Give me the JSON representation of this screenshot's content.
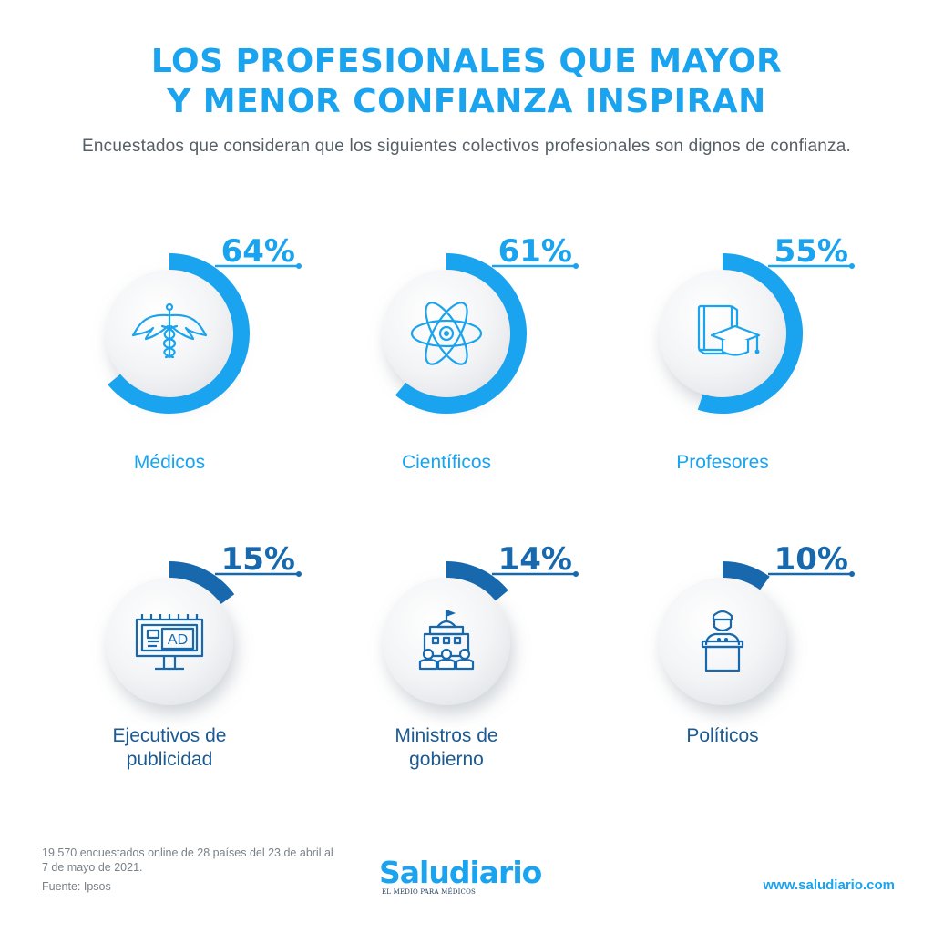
{
  "title": {
    "line1": "LOS PROFESIONALES QUE MAYOR",
    "line2": "Y MENOR CONFIANZA INSPIRAN"
  },
  "subtitle": "Encuestados que consideran que los siguientes colectivos profesionales son dignos de confianza.",
  "chart_data": {
    "type": "radial-progress",
    "unit": "%",
    "items": [
      {
        "category": "Médicos",
        "label_lines": [
          "Médicos"
        ],
        "value": 64,
        "value_label": "64%",
        "icon": "caduceus-icon",
        "color": "#1aa3ee"
      },
      {
        "category": "Científicos",
        "label_lines": [
          "Científicos"
        ],
        "value": 61,
        "value_label": "61%",
        "icon": "atom-icon",
        "color": "#1aa3ee"
      },
      {
        "category": "Profesores",
        "label_lines": [
          "Profesores"
        ],
        "value": 55,
        "value_label": "55%",
        "icon": "books-graduation-cap-icon",
        "color": "#1aa3ee"
      },
      {
        "category": "Ejecutivos de publicidad",
        "label_lines": [
          "Ejecutivos de",
          "publicidad"
        ],
        "value": 15,
        "value_label": "15%",
        "icon": "billboard-ad-icon",
        "color": "#1768ac"
      },
      {
        "category": "Ministros de gobierno",
        "label_lines": [
          "Ministros de",
          "gobierno"
        ],
        "value": 14,
        "value_label": "14%",
        "icon": "government-building-icon",
        "color": "#1768ac"
      },
      {
        "category": "Políticos",
        "label_lines": [
          "Políticos"
        ],
        "value": 10,
        "value_label": "10%",
        "icon": "politician-podium-icon",
        "color": "#1768ac"
      }
    ]
  },
  "footer": {
    "note": "19.570 encuestados online de 28 países del 23 de abril al 7 de mayo de 2021.",
    "source": "Fuente: Ipsos",
    "logo_name": "Saludiario",
    "logo_tagline": "EL MEDIO PARA MÉDICOS",
    "url": "www.saludiario.com"
  },
  "colors": {
    "accent": "#1aa3ee",
    "accent_dark": "#1768ac",
    "label_top": "#1aa3ee",
    "label_bottom": "#1c5a92",
    "text_gray": "#555f66"
  }
}
